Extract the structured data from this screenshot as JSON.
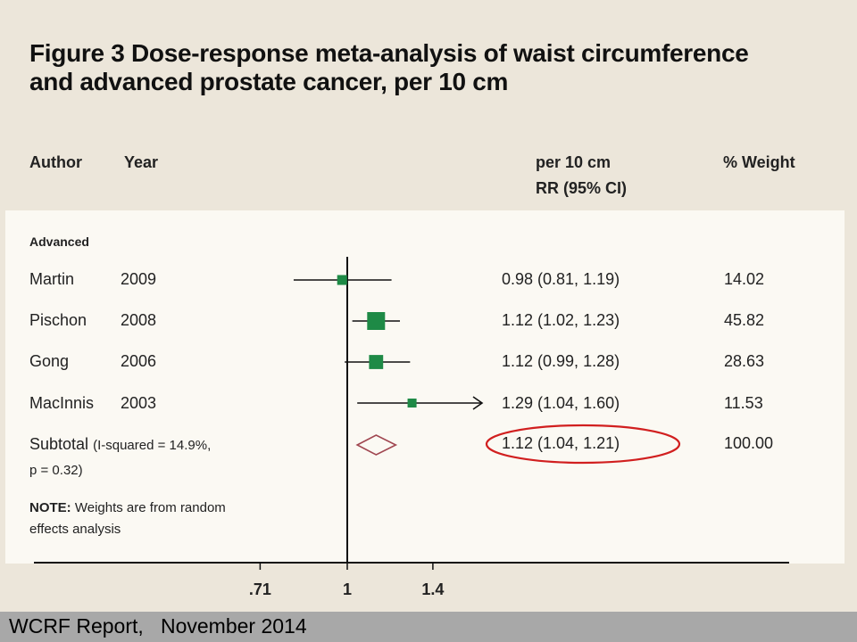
{
  "title_line1": "Figure 3 Dose-response meta-analysis of waist circumference",
  "title_line2": "and advanced prostate cancer, per 10 cm",
  "headers": {
    "author": "Author",
    "year": "Year",
    "rr_line1": "per 10 cm",
    "rr_line2": "RR (95% CI)",
    "weight": "% Weight"
  },
  "section_label": "Advanced",
  "subtotal": {
    "label": "Subtotal",
    "stat_line1": "(I-squared = 14.9%,",
    "stat_line2": "p = 0.32)",
    "ci": "1.12 (1.04, 1.21)",
    "weight": "100.00"
  },
  "note": {
    "bold": "NOTE:",
    "line1": "Weights are from random",
    "line2": "effects analysis"
  },
  "footer": "WCRF Report,   November 2014",
  "colors": {
    "marker": "#1e8a46",
    "diamond": "#a04650",
    "highlight_ellipse": "#d11f1f"
  },
  "chart_data": {
    "type": "forest",
    "scale": "log",
    "x_ticks": [
      ".71",
      "1",
      "1.4"
    ],
    "x_tick_values": [
      0.71,
      1,
      1.4
    ],
    "reference_line": 1,
    "studies": [
      {
        "author": "Martin",
        "year": "2009",
        "rr": 0.98,
        "lo": 0.81,
        "hi": 1.19,
        "ci": "0.98 (0.81, 1.19)",
        "weight": "14.02",
        "weight_value": 14.02,
        "arrow_right": false
      },
      {
        "author": "Pischon",
        "year": "2008",
        "rr": 1.12,
        "lo": 1.02,
        "hi": 1.23,
        "ci": "1.12 (1.02, 1.23)",
        "weight": "45.82",
        "weight_value": 45.82,
        "arrow_right": false
      },
      {
        "author": "Gong",
        "year": "2006",
        "rr": 1.12,
        "lo": 0.99,
        "hi": 1.28,
        "ci": "1.12 (0.99, 1.28)",
        "weight": "28.63",
        "weight_value": 28.63,
        "arrow_right": false
      },
      {
        "author": "MacInnis",
        "year": "2003",
        "rr": 1.29,
        "lo": 1.04,
        "hi": 1.6,
        "ci": "1.29 (1.04, 1.60)",
        "weight": "11.53",
        "weight_value": 11.53,
        "arrow_right": true
      }
    ],
    "pooled": {
      "rr": 1.12,
      "lo": 1.04,
      "hi": 1.21,
      "ci": "1.12 (1.04, 1.21)",
      "weight": "100.00"
    }
  }
}
